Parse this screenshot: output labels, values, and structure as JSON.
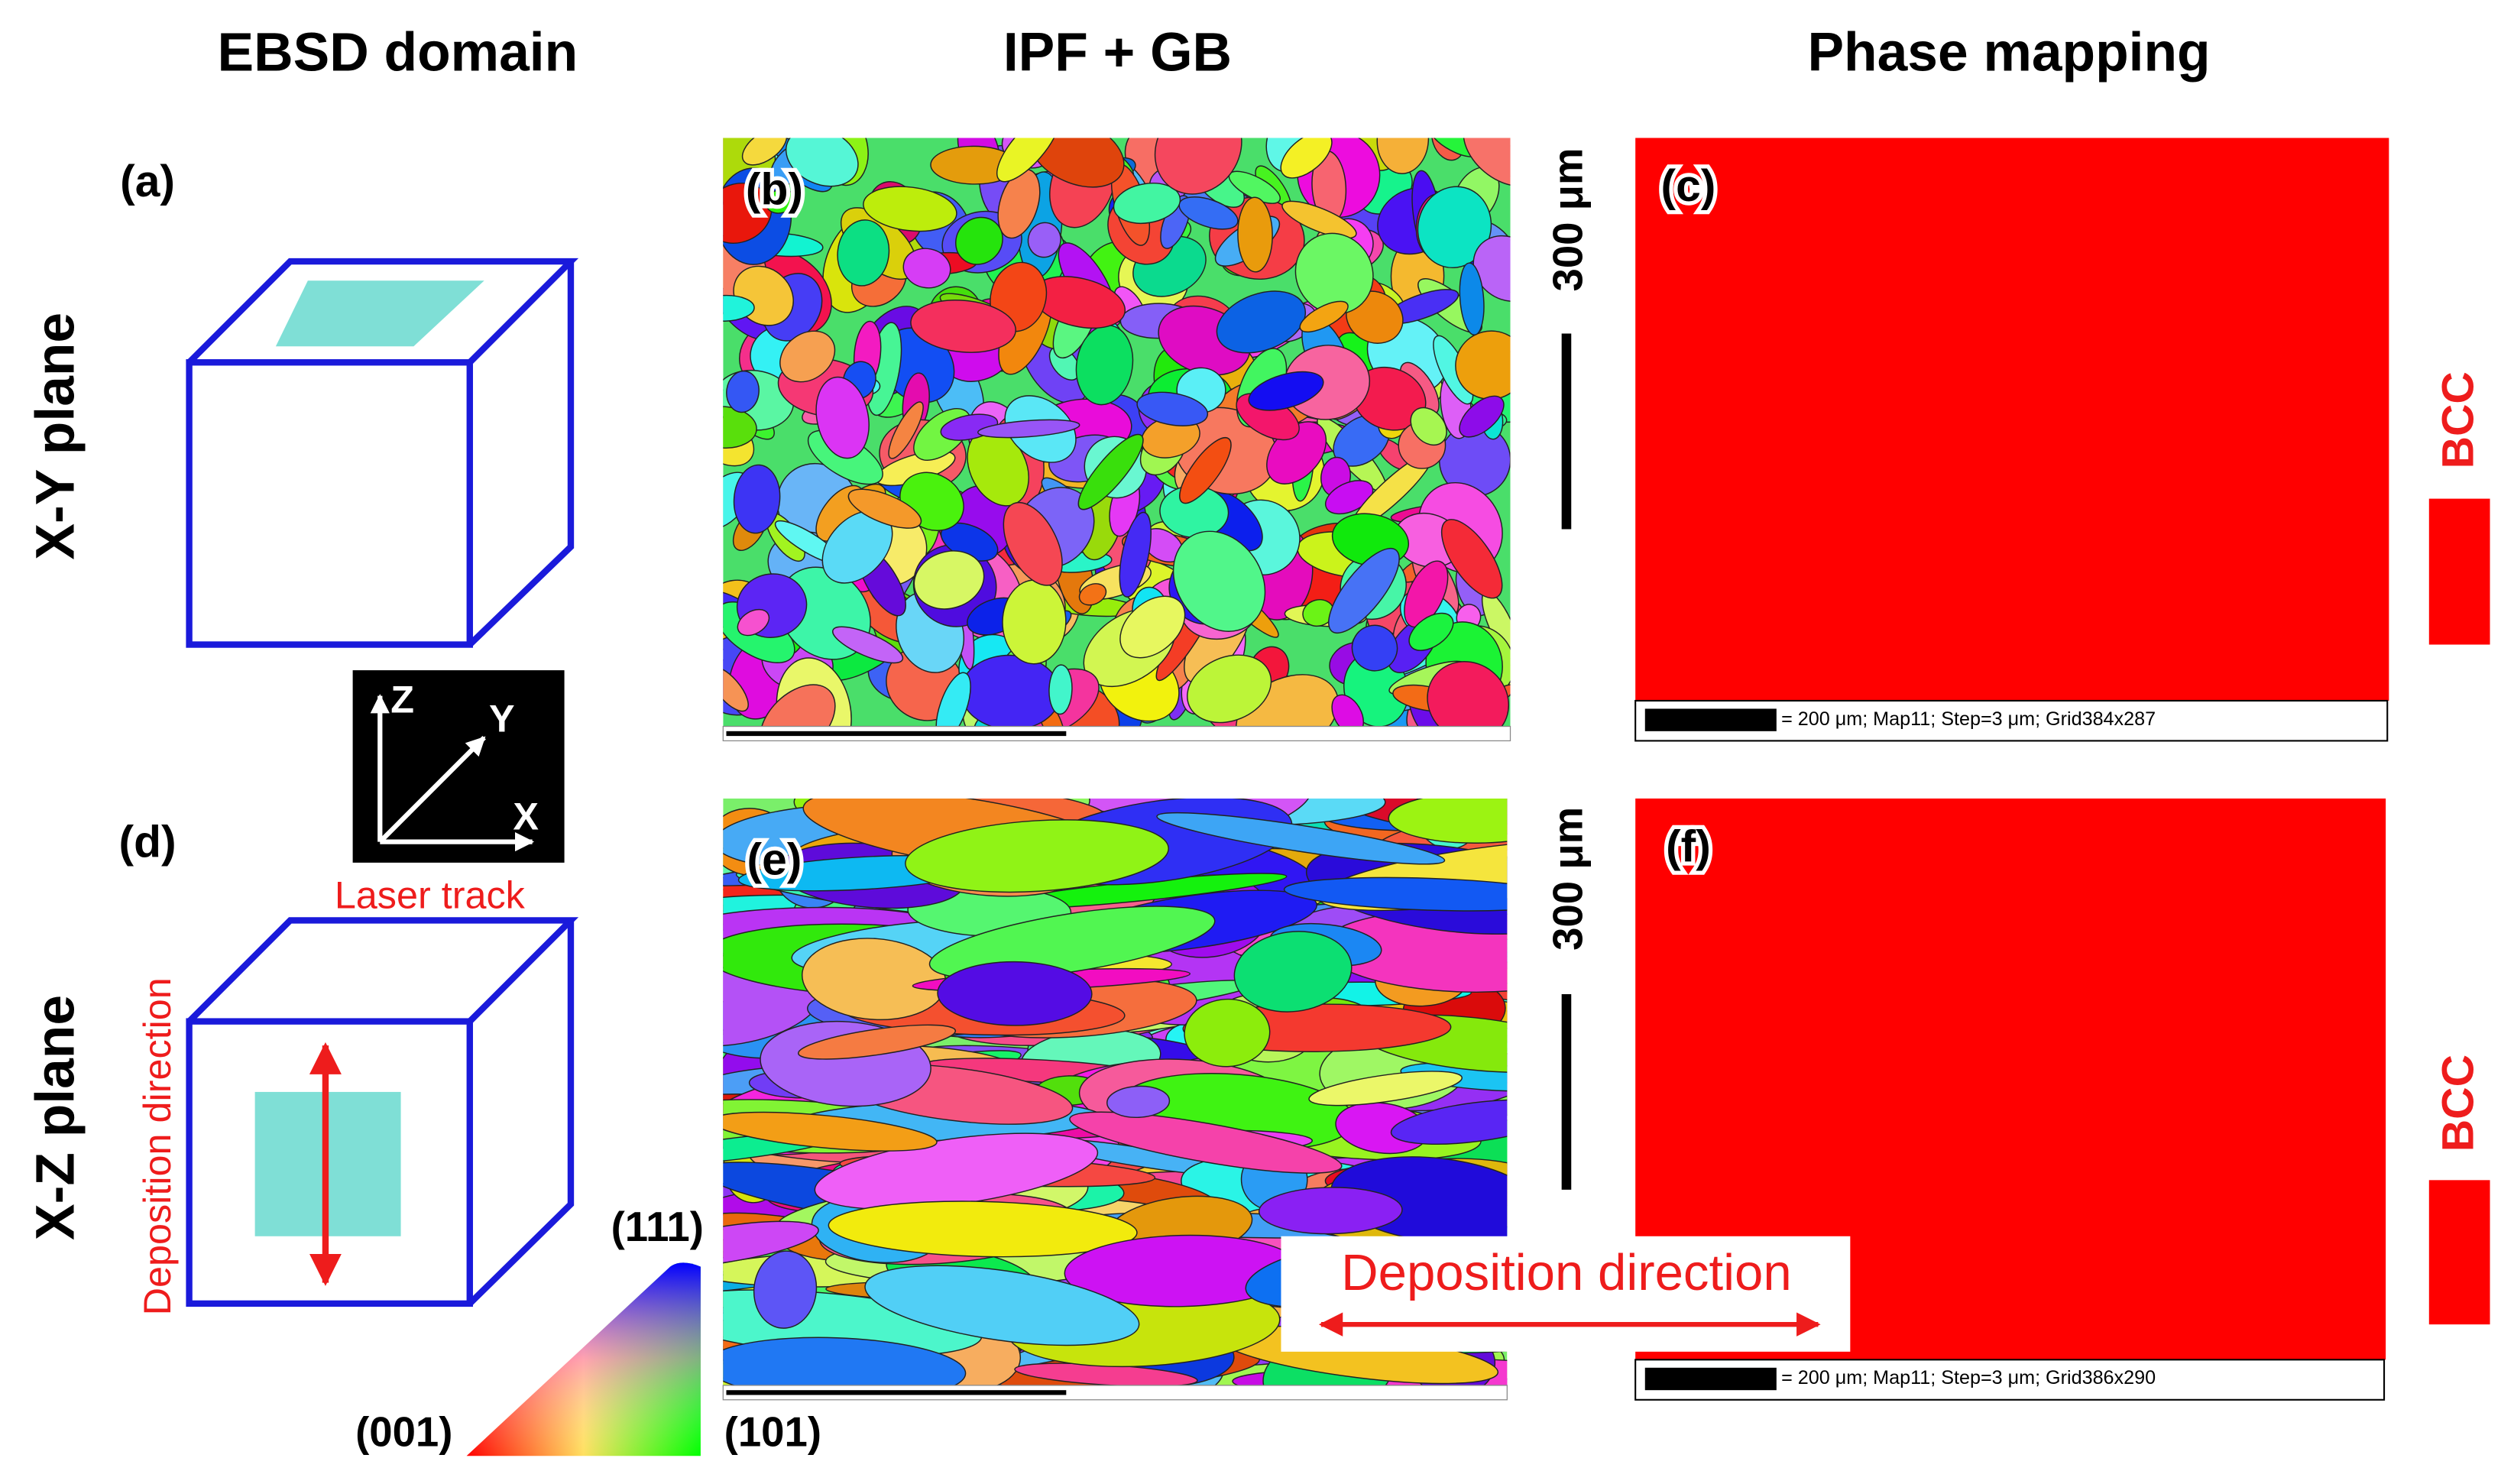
{
  "headers": [
    "EBSD domain",
    "IPF + GB",
    "Phase mapping"
  ],
  "rows": [
    {
      "label": "X-Y plane",
      "panels": [
        "(a)",
        "(b)",
        "(c)"
      ],
      "scale_bar": "300 μm",
      "phase": "BCC",
      "map_info": "= 200 μm; Map11; Step=3 μm; Grid384x287"
    },
    {
      "label": "X-Z plane",
      "panels": [
        "(d)",
        "(e)",
        "(f)"
      ],
      "scale_bar": "300 μm",
      "phase": "BCC",
      "map_info": "= 200 μm; Map11; Step=3 μm; Grid386x290",
      "laser_track": "Laser track",
      "deposition": "Deposition direction"
    }
  ],
  "axes": [
    "Z",
    "Y",
    "X"
  ],
  "ipf_key": [
    "(111)",
    "(001)",
    "(101)"
  ],
  "overlay": "Deposition direction"
}
